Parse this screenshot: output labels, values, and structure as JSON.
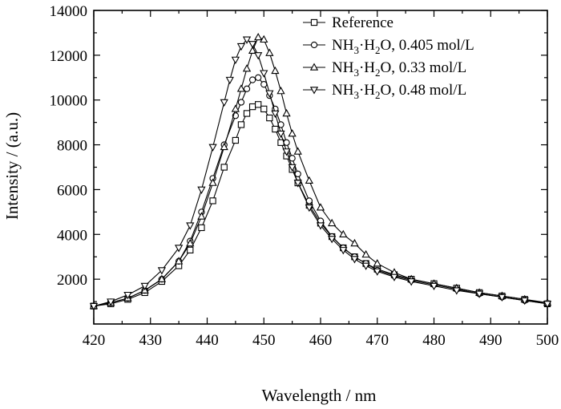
{
  "chart_data": {
    "type": "scatter",
    "xlabel": "Wavelength / nm",
    "ylabel": "Intensity / (a.u.)",
    "xlim": [
      420,
      500
    ],
    "ylim": [
      0,
      14000
    ],
    "xticks": [
      420,
      430,
      440,
      450,
      460,
      470,
      480,
      490,
      500
    ],
    "yticks": [
      2000,
      4000,
      6000,
      8000,
      10000,
      12000,
      14000
    ],
    "xtick_labels": [
      "420",
      "430",
      "440",
      "450",
      "460",
      "470",
      "480",
      "490",
      "500"
    ],
    "ytick_labels": [
      "2000",
      "4000",
      "6000",
      "8000",
      "10000",
      "12000",
      "14000"
    ],
    "grid": false,
    "legend_position": "top-right",
    "line_color": "#000000",
    "series": [
      {
        "name": "Reference",
        "legend_parts": [
          "Reference"
        ],
        "marker": "square",
        "x": [
          420,
          423,
          426,
          429,
          432,
          435,
          437,
          439,
          441,
          443,
          445,
          446,
          447,
          448,
          449,
          450,
          451,
          452,
          453,
          454,
          455,
          456,
          458,
          460,
          462,
          464,
          466,
          468,
          470,
          473,
          476,
          480,
          484,
          488,
          492,
          496,
          500
        ],
        "y": [
          800,
          900,
          1100,
          1400,
          1900,
          2600,
          3300,
          4300,
          5500,
          7000,
          8200,
          8900,
          9400,
          9700,
          9800,
          9600,
          9200,
          8700,
          8100,
          7500,
          6900,
          6300,
          5300,
          4500,
          3900,
          3400,
          3000,
          2700,
          2450,
          2200,
          2000,
          1800,
          1600,
          1400,
          1250,
          1100,
          900
        ]
      },
      {
        "name": "NH3·H2O, 0.405 mol/L",
        "legend_parts": [
          "NH",
          "3",
          "·H",
          "2",
          "O, 0.405 mol/L"
        ],
        "marker": "circle",
        "x": [
          420,
          423,
          426,
          429,
          432,
          435,
          437,
          439,
          441,
          443,
          445,
          446,
          447,
          448,
          449,
          450,
          451,
          452,
          453,
          454,
          455,
          456,
          458,
          460,
          462,
          464,
          466,
          468,
          470,
          473,
          476,
          480,
          484,
          488,
          492,
          496,
          500
        ],
        "y": [
          800,
          950,
          1150,
          1500,
          2000,
          2800,
          3700,
          5000,
          6500,
          8000,
          9300,
          9900,
          10500,
          10900,
          11000,
          10700,
          10200,
          9600,
          8900,
          8100,
          7400,
          6700,
          5500,
          4600,
          3900,
          3400,
          3000,
          2700,
          2400,
          2150,
          1950,
          1750,
          1550,
          1350,
          1200,
          1050,
          900
        ]
      },
      {
        "name": "NH3·H2O, 0.33 mol/L",
        "legend_parts": [
          "NH",
          "3",
          "·H",
          "2",
          "O, 0.33 mol/L"
        ],
        "marker": "triangle-up",
        "x": [
          420,
          423,
          426,
          429,
          432,
          435,
          437,
          439,
          441,
          443,
          445,
          446,
          447,
          448,
          449,
          450,
          451,
          452,
          453,
          454,
          455,
          456,
          458,
          460,
          462,
          464,
          466,
          468,
          470,
          473,
          476,
          480,
          484,
          488,
          492,
          496,
          500
        ],
        "y": [
          800,
          950,
          1150,
          1500,
          2000,
          2800,
          3600,
          4800,
          6300,
          7900,
          9600,
          10500,
          11400,
          12200,
          12800,
          12700,
          12100,
          11300,
          10400,
          9400,
          8500,
          7700,
          6400,
          5200,
          4500,
          4000,
          3600,
          3100,
          2700,
          2300,
          2000,
          1800,
          1600,
          1400,
          1250,
          1100,
          950
        ]
      },
      {
        "name": "NH3·H2O, 0.48 mol/L",
        "legend_parts": [
          "NH",
          "3",
          "·H",
          "2",
          "O, 0.48 mol/L"
        ],
        "marker": "triangle-down",
        "x": [
          420,
          423,
          426,
          429,
          432,
          435,
          437,
          439,
          441,
          443,
          444,
          445,
          446,
          447,
          448,
          449,
          450,
          451,
          452,
          453,
          454,
          455,
          456,
          458,
          460,
          462,
          464,
          466,
          468,
          470,
          473,
          476,
          480,
          484,
          488,
          492,
          496,
          500
        ],
        "y": [
          800,
          1000,
          1300,
          1700,
          2400,
          3400,
          4400,
          6000,
          7900,
          9900,
          10900,
          11800,
          12400,
          12700,
          12500,
          12000,
          11200,
          10300,
          9400,
          8500,
          7700,
          7000,
          6300,
          5200,
          4400,
          3800,
          3300,
          2900,
          2600,
          2350,
          2100,
          1900,
          1700,
          1500,
          1350,
          1200,
          1050,
          900
        ]
      }
    ]
  }
}
